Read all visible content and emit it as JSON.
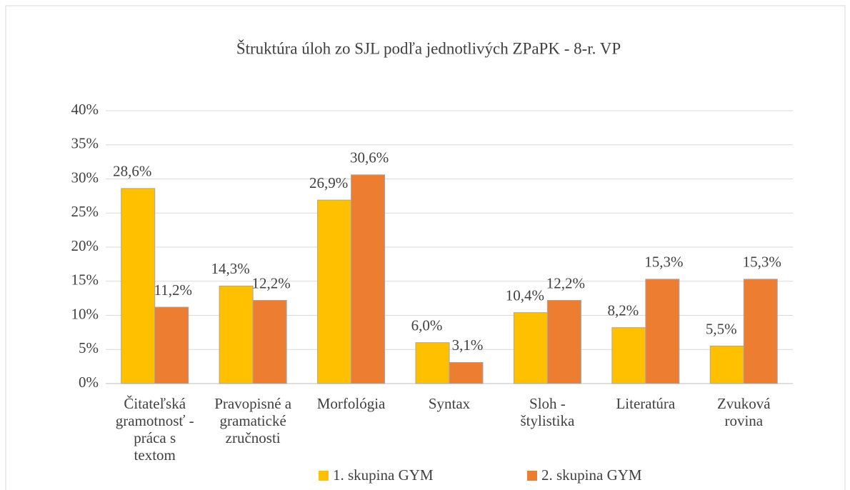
{
  "chart_data": {
    "type": "bar",
    "title": "Štruktúra úloh zo SJL podľa jednotlivých ZPaPK - 8-r. VP",
    "categories": [
      "Čitateľská gramotnosť - práca s textom",
      "Pravopisné a gramatické zručnosti",
      "Morfológia",
      "Syntax",
      "Sloh - štylistika",
      "Literatúra",
      "Zvuková rovina"
    ],
    "series": [
      {
        "name": "1. skupina GYM",
        "color": "#FFC000",
        "values": [
          28.6,
          14.3,
          26.9,
          6.0,
          10.4,
          8.2,
          5.5
        ],
        "value_labels": [
          "28,6%",
          "14,3%",
          "26,9%",
          "6,0%",
          "10,4%",
          "8,2%",
          "5,5%"
        ]
      },
      {
        "name": "2. skupina GYM",
        "color": "#ED7D31",
        "values": [
          11.2,
          12.2,
          30.6,
          3.1,
          12.2,
          15.3,
          15.3
        ],
        "value_labels": [
          "11,2%",
          "12,2%",
          "30,6%",
          "3,1%",
          "12,2%",
          "15,3%",
          "15,3%"
        ]
      }
    ],
    "ylim": [
      0,
      40
    ],
    "yticks": [
      {
        "value": 0,
        "label": "0%"
      },
      {
        "value": 5,
        "label": "5%"
      },
      {
        "value": 10,
        "label": "10%"
      },
      {
        "value": 15,
        "label": "15%"
      },
      {
        "value": 20,
        "label": "20%"
      },
      {
        "value": 25,
        "label": "25%"
      },
      {
        "value": 30,
        "label": "30%"
      },
      {
        "value": 35,
        "label": "35%"
      },
      {
        "value": 40,
        "label": "40%"
      }
    ],
    "grid": true,
    "legend": "bottom"
  }
}
